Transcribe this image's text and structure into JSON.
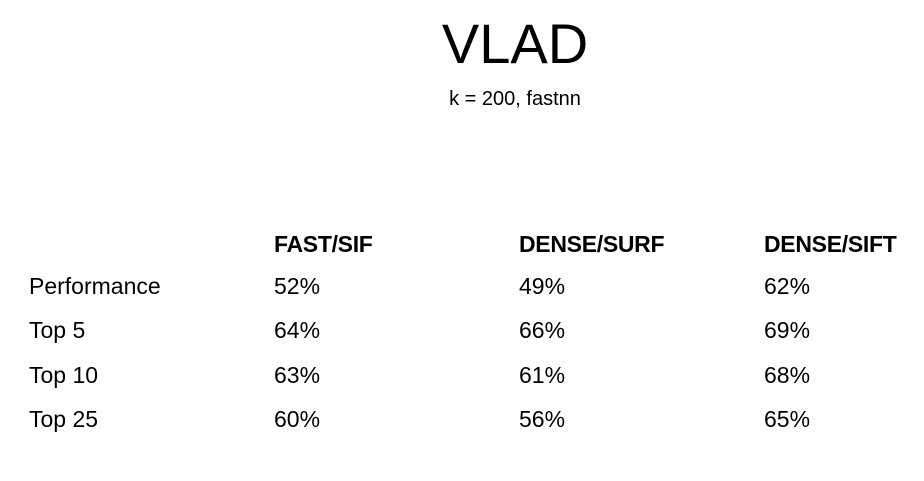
{
  "slide": {
    "title": "VLAD",
    "subtitle": "k = 200, fastnn"
  },
  "table": {
    "headers": [
      "",
      "FAST/SIF",
      "DENSE/SURF",
      "DENSE/SIFT"
    ],
    "rows": [
      {
        "label": "Performance",
        "values": [
          "52%",
          "49%",
          "62%"
        ]
      },
      {
        "label": "Top 5",
        "values": [
          "64%",
          "66%",
          "69%"
        ]
      },
      {
        "label": "Top 10",
        "values": [
          "63%",
          "61%",
          "68%"
        ]
      },
      {
        "label": "Top 25",
        "values": [
          "60%",
          "56%",
          "65%"
        ]
      }
    ]
  }
}
